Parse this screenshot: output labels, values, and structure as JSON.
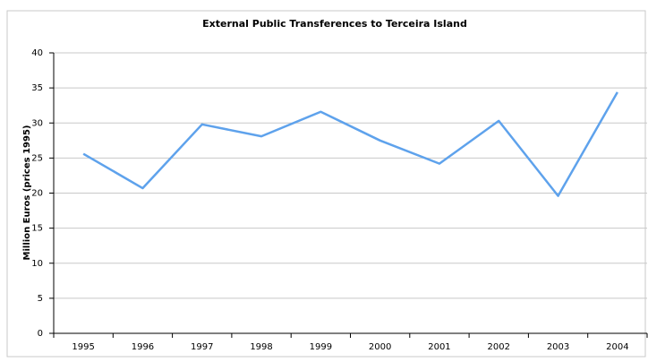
{
  "chart_data": {
    "type": "line",
    "title": "External Public Transferences to Terceira Island",
    "y_label": "Million Euros (prices 1995)",
    "categories": [
      "1995",
      "1996",
      "1997",
      "1998",
      "1999",
      "2000",
      "2001",
      "2002",
      "2003",
      "2004"
    ],
    "values": [
      25.6,
      20.7,
      29.8,
      28.1,
      31.6,
      27.5,
      24.2,
      30.3,
      19.6,
      34.4
    ],
    "color": "#5ea2ec",
    "ylim": [
      0,
      40
    ],
    "yticks": [
      0,
      5,
      10,
      15,
      20,
      25,
      30,
      35,
      40
    ],
    "grid": true
  }
}
